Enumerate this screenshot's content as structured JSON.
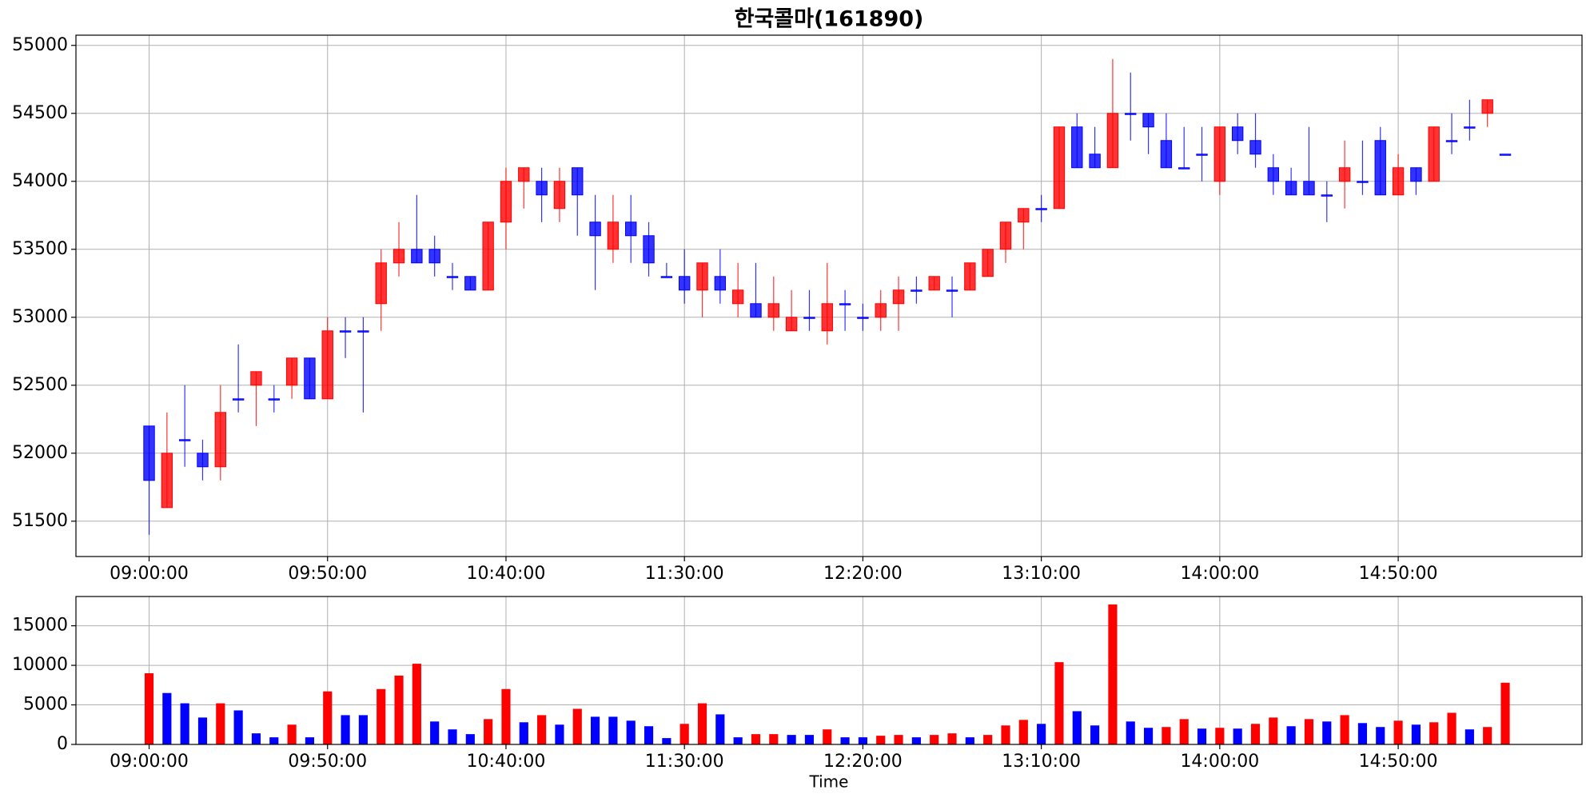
{
  "chart_data": [
    {
      "type": "candlestick",
      "title": "한국콜마(161890)",
      "categories": [
        "09:00:00",
        null,
        null,
        null,
        null,
        null,
        null,
        null,
        null,
        null,
        "09:50:00",
        null,
        null,
        null,
        null,
        null,
        null,
        null,
        null,
        null,
        "10:40:00",
        null,
        null,
        null,
        null,
        null,
        null,
        null,
        null,
        null,
        "11:30:00",
        null,
        null,
        null,
        null,
        null,
        null,
        null,
        null,
        null,
        "12:20:00",
        null,
        null,
        null,
        null,
        null,
        null,
        null,
        null,
        null,
        "13:10:00",
        null,
        null,
        null,
        null,
        null,
        null,
        null,
        null,
        null,
        "14:00:00",
        null,
        null,
        null,
        null,
        null,
        null,
        null,
        null,
        null,
        "14:50:00",
        null,
        null,
        null,
        null,
        null,
        null
      ],
      "open": [
        52200,
        51600,
        52100,
        52000,
        51900,
        52400,
        52500,
        52400,
        52500,
        52700,
        52400,
        52900,
        52900,
        53100,
        53400,
        53500,
        53500,
        53300,
        53300,
        53200,
        53700,
        54000,
        54000,
        53800,
        54100,
        53700,
        53500,
        53700,
        53600,
        53300,
        53300,
        53200,
        53300,
        53100,
        53100,
        53000,
        52900,
        53000,
        52900,
        53100,
        53000,
        53000,
        53100,
        53200,
        53200,
        53200,
        53200,
        53300,
        53500,
        53700,
        53800,
        53800,
        54400,
        54200,
        54100,
        54500,
        54500,
        54300,
        54100,
        54200,
        54000,
        54400,
        54300,
        54100,
        54000,
        54000,
        53900,
        54000,
        54000,
        54300,
        53900,
        54100,
        54000,
        54300,
        54400,
        54500,
        54200
      ],
      "high": [
        52200,
        52300,
        52500,
        52100,
        52500,
        52800,
        52600,
        52500,
        52700,
        52700,
        53000,
        53000,
        53000,
        53500,
        53700,
        53900,
        53600,
        53400,
        53300,
        53700,
        54100,
        54100,
        54100,
        54100,
        54100,
        53900,
        53900,
        53900,
        53700,
        53400,
        53500,
        53400,
        53500,
        53400,
        53400,
        53300,
        53200,
        53200,
        53400,
        53200,
        53100,
        53200,
        53300,
        53300,
        53300,
        53300,
        53400,
        53500,
        53700,
        53800,
        53900,
        54400,
        54500,
        54400,
        54900,
        54800,
        54500,
        54500,
        54400,
        54400,
        54400,
        54500,
        54500,
        54200,
        54100,
        54400,
        54000,
        54300,
        54300,
        54400,
        54200,
        54100,
        54400,
        54500,
        54600,
        54600,
        54200
      ],
      "low": [
        51400,
        51600,
        51900,
        51800,
        51800,
        52300,
        52200,
        52300,
        52400,
        52400,
        52400,
        52700,
        52300,
        52900,
        53300,
        53400,
        53300,
        53200,
        53200,
        53200,
        53500,
        53800,
        53700,
        53700,
        53600,
        53200,
        53400,
        53400,
        53300,
        53300,
        53100,
        53000,
        53100,
        53000,
        53000,
        52900,
        52900,
        52900,
        52800,
        52900,
        52900,
        52900,
        52900,
        53100,
        53200,
        53000,
        53200,
        53300,
        53400,
        53500,
        53700,
        53800,
        54100,
        54100,
        54100,
        54300,
        54200,
        54100,
        54100,
        54000,
        53900,
        54200,
        54100,
        53900,
        53900,
        53900,
        53700,
        53800,
        53900,
        53900,
        53900,
        53900,
        54000,
        54200,
        54300,
        54400,
        54200
      ],
      "close": [
        51800,
        52000,
        52100,
        51900,
        52300,
        52400,
        52600,
        52400,
        52700,
        52400,
        52900,
        52900,
        52900,
        53400,
        53500,
        53400,
        53400,
        53300,
        53200,
        53700,
        54000,
        54100,
        53900,
        54000,
        53900,
        53600,
        53700,
        53600,
        53400,
        53300,
        53200,
        53400,
        53200,
        53200,
        53000,
        53100,
        53000,
        53000,
        53100,
        53100,
        53000,
        53100,
        53200,
        53200,
        53300,
        53200,
        53400,
        53500,
        53700,
        53800,
        53800,
        54400,
        54100,
        54100,
        54500,
        54500,
        54400,
        54100,
        54100,
        54200,
        54400,
        54300,
        54200,
        54000,
        53900,
        53900,
        53900,
        54100,
        54000,
        53900,
        54100,
        54000,
        54400,
        54300,
        54400,
        54600,
        54200
      ],
      "up_color": "#ff0000",
      "down_color": "#0000ff",
      "xlim": [
        -4.1,
        80.3
      ],
      "ylim": [
        51240,
        55075
      ],
      "yticks": [
        51500,
        52000,
        52500,
        53000,
        53500,
        54000,
        54500,
        55000
      ],
      "grid": true
    },
    {
      "type": "bar",
      "xlabel": "Time",
      "categories": [
        "09:00:00",
        null,
        null,
        null,
        null,
        null,
        null,
        null,
        null,
        null,
        "09:50:00",
        null,
        null,
        null,
        null,
        null,
        null,
        null,
        null,
        null,
        "10:40:00",
        null,
        null,
        null,
        null,
        null,
        null,
        null,
        null,
        null,
        "11:30:00",
        null,
        null,
        null,
        null,
        null,
        null,
        null,
        null,
        null,
        "12:20:00",
        null,
        null,
        null,
        null,
        null,
        null,
        null,
        null,
        null,
        "13:10:00",
        null,
        null,
        null,
        null,
        null,
        null,
        null,
        null,
        null,
        "14:00:00",
        null,
        null,
        null,
        null,
        null,
        null,
        null,
        null,
        null,
        "14:50:00",
        null,
        null,
        null,
        null,
        null,
        null
      ],
      "values": [
        9000,
        6500,
        5200,
        3400,
        5200,
        4300,
        1400,
        900,
        2500,
        900,
        6700,
        3700,
        3700,
        7000,
        8700,
        10200,
        2900,
        1900,
        1300,
        3200,
        7000,
        2800,
        3700,
        2500,
        4500,
        3500,
        3500,
        3000,
        2300,
        800,
        2600,
        5200,
        3800,
        900,
        1300,
        1300,
        1200,
        1200,
        1900,
        900,
        900,
        1100,
        1200,
        900,
        1200,
        1400,
        900,
        1200,
        2400,
        3100,
        2600,
        10400,
        4200,
        2400,
        17700,
        2900,
        2100,
        2200,
        3200,
        2000,
        2100,
        2000,
        2600,
        3400,
        2300,
        3200,
        2900,
        3700,
        2700,
        2200,
        3000,
        2500,
        2800,
        4000,
        1900,
        2200,
        7800
      ],
      "colors": [
        "#ff0000",
        "#0000ff",
        "#0000ff",
        "#0000ff",
        "#ff0000",
        "#0000ff",
        "#0000ff",
        "#0000ff",
        "#ff0000",
        "#0000ff",
        "#ff0000",
        "#0000ff",
        "#0000ff",
        "#ff0000",
        "#ff0000",
        "#ff0000",
        "#0000ff",
        "#0000ff",
        "#0000ff",
        "#ff0000",
        "#ff0000",
        "#0000ff",
        "#ff0000",
        "#0000ff",
        "#ff0000",
        "#0000ff",
        "#0000ff",
        "#0000ff",
        "#0000ff",
        "#0000ff",
        "#ff0000",
        "#ff0000",
        "#0000ff",
        "#0000ff",
        "#ff0000",
        "#ff0000",
        "#0000ff",
        "#0000ff",
        "#ff0000",
        "#0000ff",
        "#0000ff",
        "#ff0000",
        "#ff0000",
        "#0000ff",
        "#ff0000",
        "#ff0000",
        "#0000ff",
        "#ff0000",
        "#ff0000",
        "#ff0000",
        "#0000ff",
        "#ff0000",
        "#0000ff",
        "#0000ff",
        "#ff0000",
        "#0000ff",
        "#0000ff",
        "#ff0000",
        "#ff0000",
        "#0000ff",
        "#ff0000",
        "#0000ff",
        "#ff0000",
        "#ff0000",
        "#0000ff",
        "#ff0000",
        "#0000ff",
        "#ff0000",
        "#0000ff",
        "#0000ff",
        "#ff0000",
        "#0000ff",
        "#ff0000",
        "#ff0000",
        "#0000ff",
        "#ff0000",
        "#ff0000"
      ],
      "xlim": [
        -4.1,
        80.3
      ],
      "ylim": [
        0,
        18700
      ],
      "yticks": [
        0,
        5000,
        10000,
        15000
      ],
      "grid": true
    }
  ]
}
